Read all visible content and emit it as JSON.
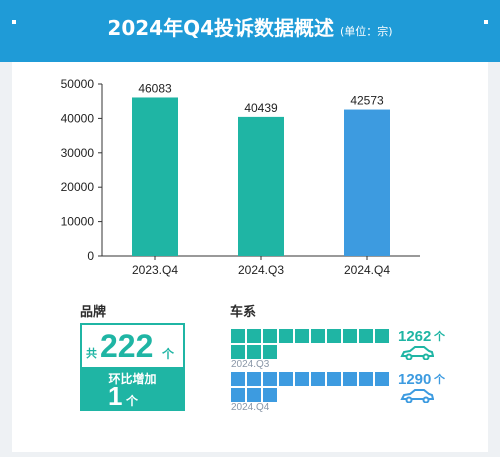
{
  "header": {
    "title": "2024年Q4投诉数据概述",
    "unit_note": "(单位：宗)"
  },
  "chart_data": {
    "type": "bar",
    "categories": [
      "2023.Q4",
      "2024.Q3",
      "2024.Q4"
    ],
    "values": [
      46083,
      40439,
      42573
    ],
    "ylim": [
      0,
      50000
    ],
    "yticks": [
      0,
      10000,
      20000,
      30000,
      40000,
      50000
    ],
    "bar_colors": [
      "#1fb5a4",
      "#1fb5a4",
      "#3d9be0"
    ],
    "title": "",
    "xlabel": "",
    "ylabel": ""
  },
  "brand": {
    "label": "品牌",
    "prefix": "共",
    "count": "222",
    "count_unit": "个",
    "change_label": "环比增加",
    "change_value": "1",
    "change_unit": "个",
    "color": "#1fb5a4"
  },
  "series": {
    "label": "车系",
    "rows": [
      {
        "period": "2024.Q3",
        "count": "1262",
        "unit": "个",
        "value": 1262,
        "color": "#1fb5a4"
      },
      {
        "period": "2024.Q4",
        "count": "1290",
        "unit": "个",
        "value": 1290,
        "color": "#3d9be0"
      }
    ]
  }
}
